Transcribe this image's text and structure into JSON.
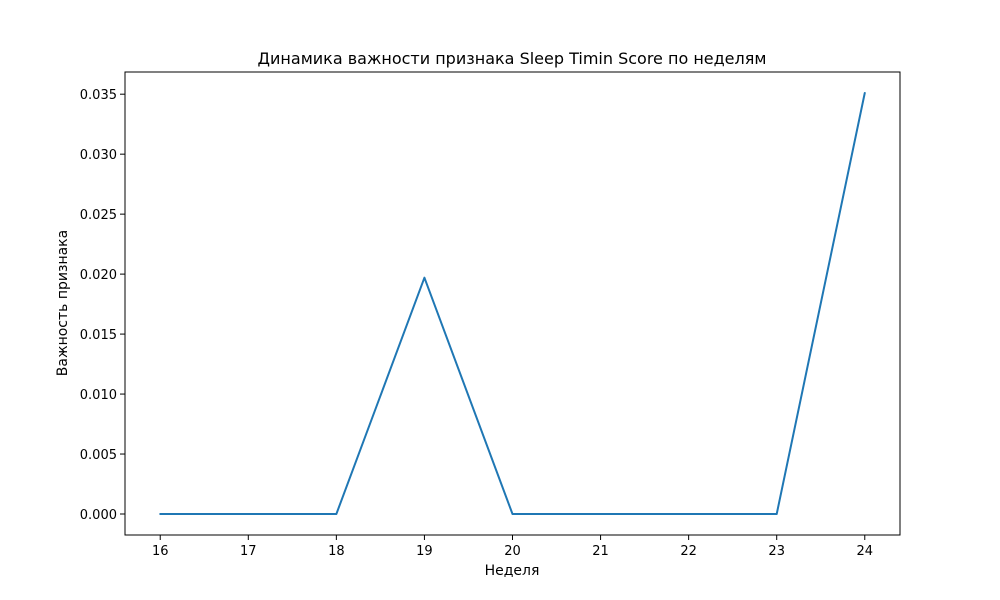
{
  "chart_data": {
    "type": "line",
    "title": "Динамика важности признака Sleep Timin Score по неделям",
    "xlabel": "Неделя",
    "ylabel": "Важность признака",
    "x": [
      16,
      17,
      18,
      19,
      20,
      21,
      22,
      23,
      24
    ],
    "series": [
      {
        "values": [
          0.0,
          0.0,
          0.0,
          0.0197,
          0.0,
          0.0,
          0.0,
          0.0,
          0.0351
        ],
        "color": "#1f77b4"
      }
    ],
    "xlim": [
      15.6,
      24.4
    ],
    "ylim": [
      -0.00175,
      0.03685
    ],
    "xticks": [
      16,
      17,
      18,
      19,
      20,
      21,
      22,
      23,
      24
    ],
    "xtick_labels": [
      "16",
      "17",
      "18",
      "19",
      "20",
      "21",
      "22",
      "23",
      "24"
    ],
    "yticks": [
      0.0,
      0.005,
      0.01,
      0.015,
      0.02,
      0.025,
      0.03,
      0.035
    ],
    "ytick_labels": [
      "0.000",
      "0.005",
      "0.010",
      "0.015",
      "0.020",
      "0.025",
      "0.030",
      "0.035"
    ],
    "grid": false,
    "legend": "none"
  }
}
